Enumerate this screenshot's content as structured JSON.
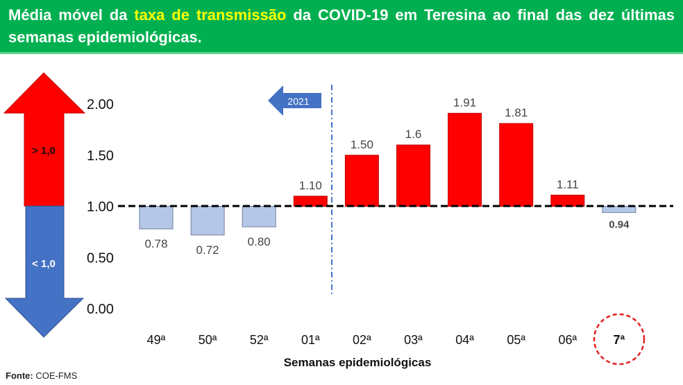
{
  "header": {
    "title_pre": "Média móvel da ",
    "title_highlight": "taxa de transmissão",
    "title_post": " da COVID-19 em Teresina ao final das dez últimas semanas epidemiológicas."
  },
  "legend_arrows": {
    "up_label": "> 1,0",
    "down_label": "< 1,0",
    "up_color": "#ff0000",
    "down_color": "#4472c4"
  },
  "year_marker": {
    "label": "2021",
    "color": "#4472c4"
  },
  "footer": {
    "source_label": "Fonte:",
    "source_value": " COE-FMS"
  },
  "chart_data": {
    "type": "bar",
    "title": "Média móvel da taxa de transmissão da COVID-19 em Teresina",
    "xlabel": "Semanas epidemiológicas",
    "ylabel": "",
    "baseline": 1.0,
    "ylim": [
      0,
      2
    ],
    "yticks": [
      "0.00",
      "0.50",
      "1.00",
      "1.50",
      "2.00"
    ],
    "categories": [
      "49ª",
      "50ª",
      "52ª",
      "01ª",
      "02ª",
      "03ª",
      "04ª",
      "05ª",
      "06ª",
      "7ª"
    ],
    "values": [
      0.78,
      0.72,
      0.8,
      1.1,
      1.5,
      1.6,
      1.91,
      1.81,
      1.11,
      0.94
    ],
    "labels": [
      "0.78",
      "0.72",
      "0.80",
      "1.10",
      "1.50",
      "1.6",
      "1.91",
      "1.81",
      "1.11",
      "0.94"
    ],
    "highlighted_category": "7ª",
    "colors": {
      "above": "#ff0000",
      "below": "#b4c7e7",
      "highlight_circle": "#e02020"
    }
  }
}
